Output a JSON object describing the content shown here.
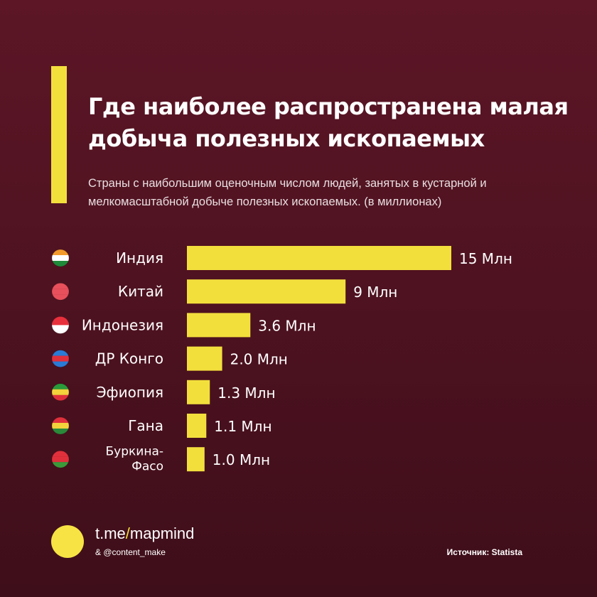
{
  "header": {
    "title": "Где наиболее распространена малая добыча полезных ископаемых",
    "subtitle": "Страны с наибольшим оценочным числом людей, занятых в кустарной и мелкомасштабной добыче полезных ископаемых. (в миллионах)"
  },
  "chart_data": {
    "type": "bar",
    "orientation": "horizontal",
    "title": "Где наиболее распространена малая добыча полезных ископаемых",
    "categories": [
      "Индия",
      "Китай",
      "Индонезия",
      "ДР Конго",
      "Эфиопия",
      "Гана",
      "Буркина-Фасо"
    ],
    "values": [
      15,
      9,
      3.6,
      2.0,
      1.3,
      1.1,
      1.0
    ],
    "labels": [
      "15 Млн",
      "9 Млн",
      "3.6 Млн",
      "2.0 Млн",
      "1.3 Млн",
      "1.1 Млн",
      "1.0 Млн"
    ],
    "flags": [
      "india-flag",
      "china-flag",
      "indonesia-flag",
      "dr-congo-flag",
      "ethiopia-flag",
      "ghana-flag",
      "burkina-faso-flag"
    ],
    "xlim": [
      0,
      15
    ],
    "bar_color": "#f3df3c"
  },
  "footer": {
    "link_prefix": "t.me",
    "link_slash": "/",
    "link_name": "mapmind",
    "credit": "& @content_make",
    "source": "Источник: Statista"
  }
}
